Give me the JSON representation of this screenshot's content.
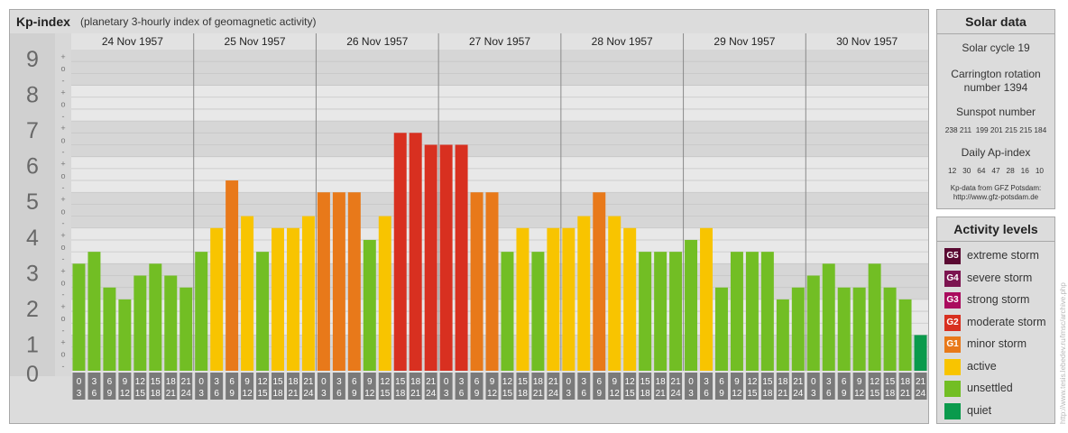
{
  "chart": {
    "title": "Kp-index",
    "subtitle": "(planetary 3-hourly index of geomagnetic activity)"
  },
  "chart_data": {
    "type": "bar",
    "title": "Kp-index",
    "subtitle": "(planetary 3-hourly index of geomagnetic activity)",
    "ylim": [
      0,
      9
    ],
    "y_ticks": [
      "0",
      "1",
      "2",
      "3",
      "4",
      "5",
      "6",
      "7",
      "8",
      "9"
    ],
    "minor_ticks": [
      "+",
      "o",
      "-"
    ],
    "days": [
      "24 Nov 1957",
      "25 Nov 1957",
      "26 Nov 1957",
      "27 Nov 1957",
      "28 Nov 1957",
      "29 Nov 1957",
      "30 Nov 1957"
    ],
    "intervals": [
      [
        "0",
        "3"
      ],
      [
        "3",
        "6"
      ],
      [
        "6",
        "9"
      ],
      [
        "9",
        "12"
      ],
      [
        "12",
        "15"
      ],
      [
        "15",
        "18"
      ],
      [
        "18",
        "21"
      ],
      [
        "21",
        "24"
      ]
    ],
    "values": [
      [
        3.0,
        3.333,
        2.333,
        2.0,
        2.667,
        3.0,
        2.667,
        2.333
      ],
      [
        3.333,
        4.0,
        5.333,
        4.333,
        3.333,
        4.0,
        4.0,
        4.333
      ],
      [
        5.0,
        5.0,
        5.0,
        3.667,
        4.333,
        6.667,
        6.667,
        6.333
      ],
      [
        6.333,
        6.333,
        5.0,
        5.0,
        3.333,
        4.0,
        3.333,
        4.0
      ],
      [
        4.0,
        4.333,
        5.0,
        4.333,
        4.0,
        3.333,
        3.333,
        3.333
      ],
      [
        3.667,
        4.0,
        2.333,
        3.333,
        3.333,
        3.333,
        2.0,
        2.333
      ],
      [
        2.667,
        3.0,
        2.333,
        2.333,
        3.0,
        2.333,
        2.0,
        1.0
      ]
    ],
    "grid": true
  },
  "solar": {
    "header": "Solar data",
    "cycle": "Solar cycle 19",
    "carrington_1": "Carrington rotation",
    "carrington_2": "number 1394",
    "sunspot_label": "Sunspot number",
    "sunspot_values": "238 211  199 201 215 215 184",
    "ap_label": "Daily Ap-index",
    "ap_values": "12   30   64   47   28   16   10",
    "source_1": "Kp-data from GFZ Potsdam:",
    "source_2": "http://www.gfz-potsdam.de"
  },
  "activity": {
    "header": "Activity levels",
    "levels": [
      {
        "code": "G5",
        "label": "extreme storm",
        "color": "#5a0a32"
      },
      {
        "code": "G4",
        "label": "severe storm",
        "color": "#7c1450"
      },
      {
        "code": "G3",
        "label": "strong storm",
        "color": "#aa0c5e"
      },
      {
        "code": "G2",
        "label": "moderate storm",
        "color": "#d83020"
      },
      {
        "code": "G1",
        "label": "minor storm",
        "color": "#e8791a"
      },
      {
        "code": "",
        "label": "active",
        "color": "#f8c400"
      },
      {
        "code": "",
        "label": "unsettled",
        "color": "#72be24"
      },
      {
        "code": "",
        "label": "quiet",
        "color": "#0a9a4c"
      }
    ]
  },
  "watermark": "http://www.tesis.lebedev.ru/lmsc/archive.php"
}
